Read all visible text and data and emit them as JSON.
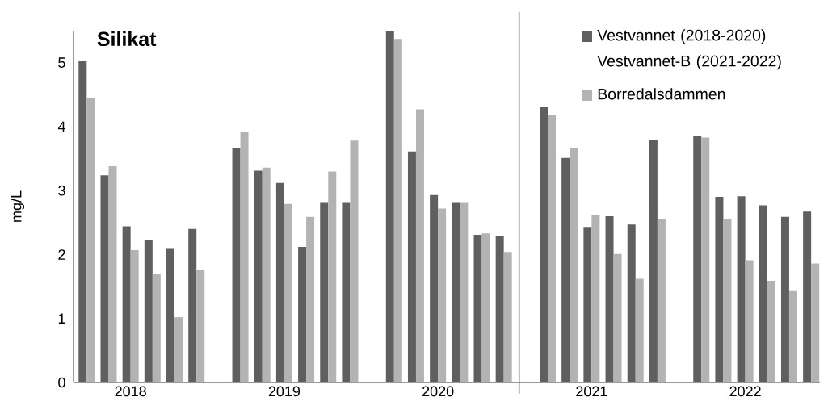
{
  "chart_data": {
    "type": "bar",
    "title": "Silikat",
    "ylabel": "mg/L",
    "categories": [
      null,
      null,
      "2018",
      null,
      null,
      null,
      null,
      null,
      null,
      "2019",
      null,
      null,
      null,
      null,
      null,
      null,
      "2020",
      null,
      null,
      null,
      null,
      null,
      null,
      "2021",
      null,
      null,
      null,
      null,
      null,
      null,
      "2022",
      null,
      null,
      null
    ],
    "ylim": [
      0,
      5.5
    ],
    "yticks": [
      0,
      1,
      2,
      3,
      4,
      5
    ],
    "series": [
      {
        "name": "Vestvannet (2018-2020) Vestvannet-B (2021-2022)",
        "color": "#5f5f5f",
        "values": [
          5.02,
          3.24,
          2.44,
          2.22,
          2.1,
          2.4,
          null,
          3.67,
          3.31,
          3.12,
          2.12,
          2.82,
          2.82,
          null,
          5.5,
          3.61,
          2.93,
          2.82,
          2.31,
          2.29,
          null,
          4.3,
          3.51,
          2.43,
          2.6,
          2.47,
          3.79,
          null,
          3.85,
          2.9,
          2.91,
          2.77,
          2.59,
          2.67
        ]
      },
      {
        "name": "Borredalsdammen",
        "color": "#b3b3b3",
        "values": [
          4.45,
          3.38,
          2.07,
          1.7,
          1.02,
          1.76,
          null,
          3.91,
          3.36,
          2.79,
          2.59,
          3.3,
          3.78,
          null,
          5.37,
          4.27,
          2.72,
          2.82,
          2.33,
          2.04,
          null,
          4.18,
          3.67,
          2.62,
          2.01,
          1.62,
          2.56,
          null,
          3.83,
          2.56,
          1.91,
          1.59,
          1.44,
          1.86
        ]
      }
    ],
    "legend": "top right"
  }
}
